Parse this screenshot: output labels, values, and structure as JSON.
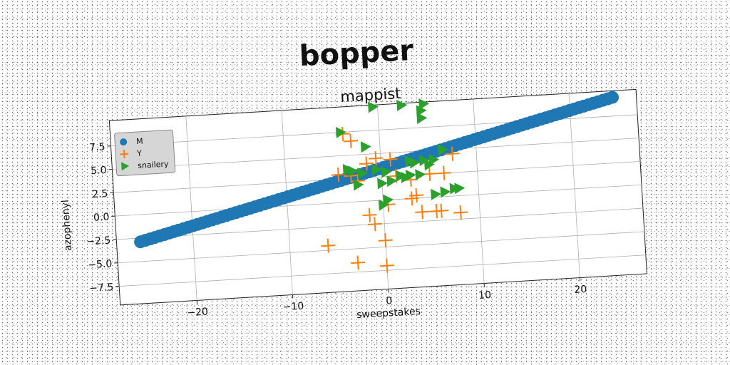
{
  "chart_data": {
    "type": "scatter",
    "title": "bopper",
    "subtitle": "mappist",
    "xlabel": "sweepstakes",
    "ylabel": "azophenyl",
    "xlim": [
      -28,
      27
    ],
    "ylim": [
      -9.5,
      10.2
    ],
    "xticks": [
      -20,
      -10,
      0,
      10,
      20
    ],
    "yticks": [
      -7.5,
      -5.0,
      -2.5,
      0.0,
      2.5,
      5.0,
      7.5
    ],
    "xtick_labels": [
      "−20",
      "−10",
      "0",
      "10",
      "20"
    ],
    "ytick_labels": [
      "−7.5",
      "−5.0",
      "−2.5",
      "0.0",
      "2.5",
      "5.0",
      "7.5"
    ],
    "grid": true,
    "legend_position": "top-left",
    "series": [
      {
        "name": "M",
        "marker": "circle",
        "color": "#1f77b4",
        "line": {
          "x_start": -25.5,
          "x_end": 24.5,
          "y_start": -2.9,
          "y_end": 9.5,
          "count": 100
        }
      },
      {
        "name": "Y",
        "marker": "plus",
        "color": "#ff7f0e",
        "x": [
          -3.8,
          -3.0,
          -4.5,
          -3.2,
          -2.5,
          -0.5,
          -1.5,
          1.5,
          3.0,
          3.5,
          5.0,
          6.5,
          7.5,
          8.0,
          -1.5,
          -1.0,
          0.5,
          4.0,
          5.5,
          6.0,
          3.0,
          0.0,
          -6.0,
          -3.0,
          0.0,
          1.0
        ],
        "y": [
          7.3,
          6.5,
          3.0,
          2.8,
          2.2,
          4.5,
          4.0,
          2.5,
          2.0,
          0.3,
          2.5,
          2.5,
          4.5,
          -1.8,
          -1.5,
          -2.5,
          -0.5,
          -1.5,
          -1.5,
          -1.5,
          0.0,
          -4.3,
          -4.5,
          -6.5,
          -7.0,
          4.3
        ],
        "y_note": ""
      },
      {
        "name": "snailery",
        "marker": "triangle-right",
        "color": "#2ca02c",
        "x": [
          -0.5,
          2.5,
          4.8,
          4.5,
          4.5,
          -4.0,
          -1.5,
          6.5,
          3.0,
          3.5,
          4.5,
          5.5,
          5.0,
          -3.5,
          -3.0,
          -2.0,
          -0.5,
          0.5,
          2.0,
          2.5,
          3.0,
          4.0,
          -2.5,
          0.0,
          1.0,
          6.5,
          7.5,
          8.0,
          5.5,
          0.0,
          0.5
        ],
        "y": [
          10.0,
          10.0,
          10.0,
          9.3,
          8.5,
          7.5,
          5.8,
          5.0,
          4.0,
          3.8,
          4.0,
          4.0,
          3.5,
          3.5,
          3.3,
          3.0,
          3.3,
          3.0,
          2.5,
          2.3,
          2.5,
          2.5,
          1.8,
          1.8,
          2.0,
          0.5,
          0.8,
          0.8,
          0.3,
          -0.5,
          0.0
        ]
      }
    ]
  }
}
